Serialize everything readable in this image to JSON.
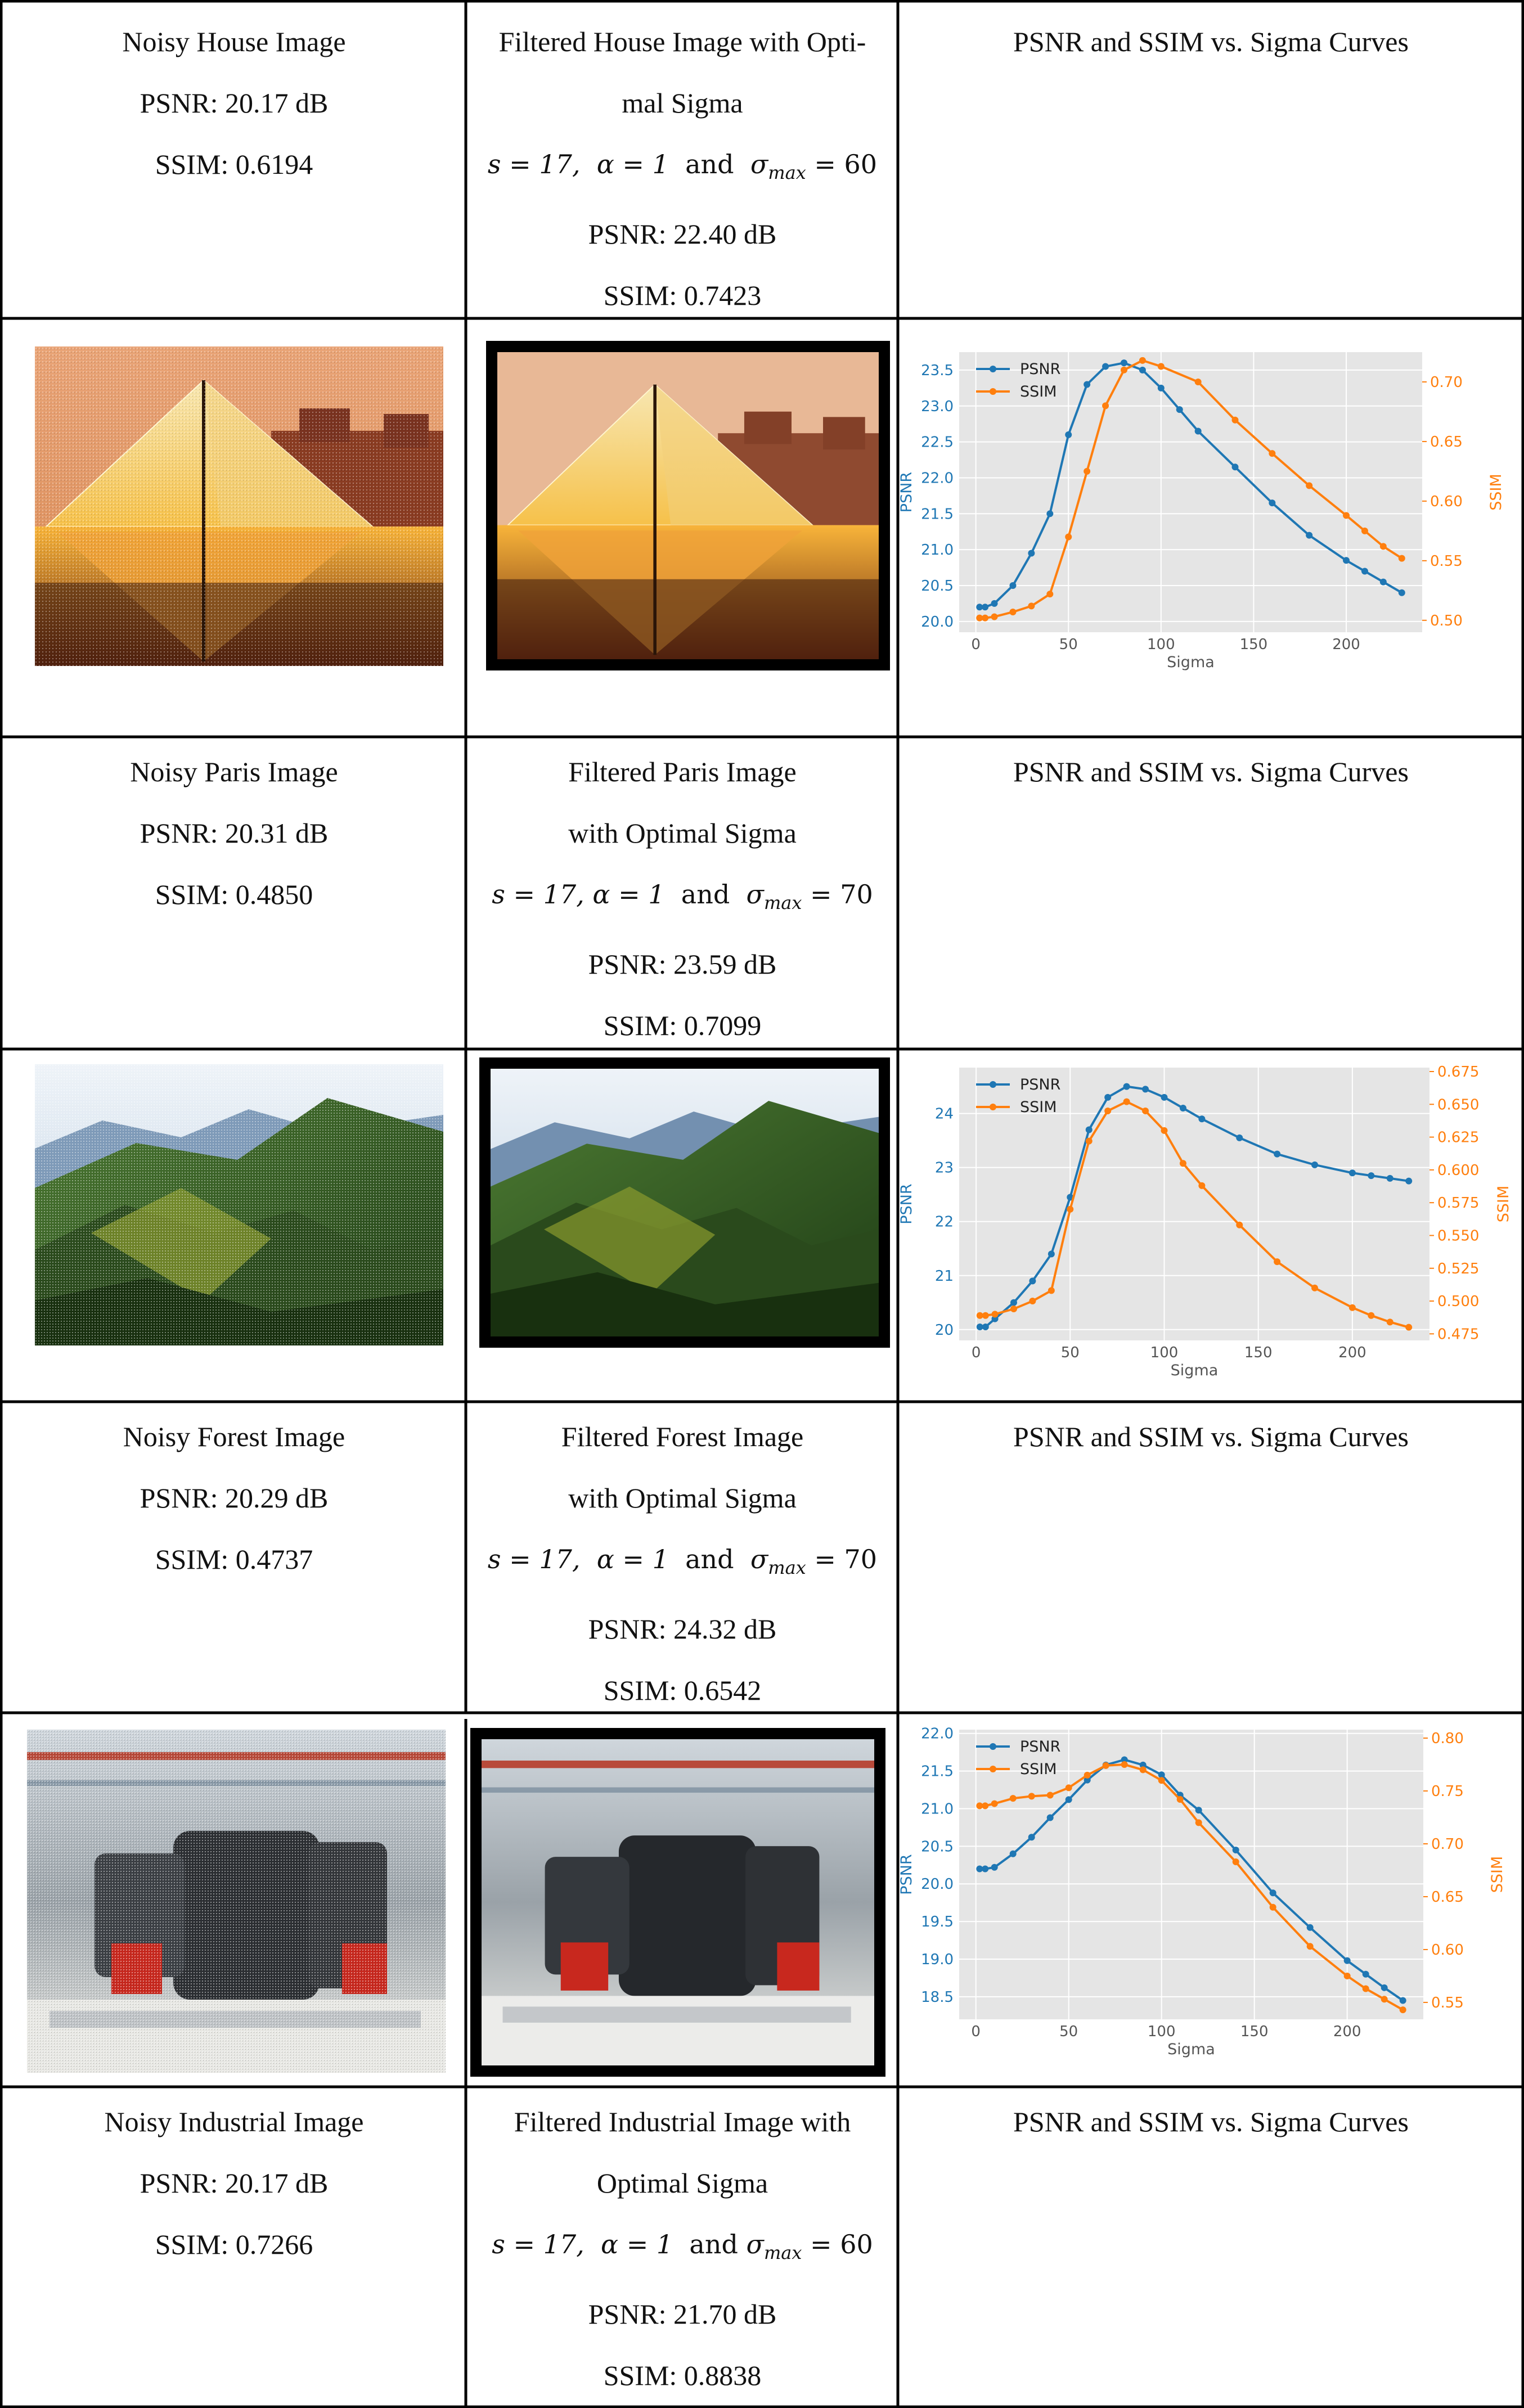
{
  "rows": [
    {
      "noisy": {
        "title": "Noisy House Image",
        "psnr": "PSNR: 20.17 dB",
        "ssim": "SSIM: 0.6194"
      },
      "filtered": {
        "title_lines": [
          "Filtered House Image with Opti-",
          "mal Sigma"
        ],
        "params": {
          "s": "s = 17,",
          "alpha": "α = 1",
          "and": "and",
          "sigma": "σ",
          "sub": "max",
          "val": "= 60"
        },
        "psnr": "PSNR: 22.40 dB",
        "ssim": "SSIM: 0.7423"
      },
      "curves_title": "PSNR and SSIM vs. Sigma Curves"
    },
    {
      "noisy": {
        "title": "Noisy Paris Image",
        "psnr": "PSNR: 20.31 dB",
        "ssim": "SSIM: 0.4850"
      },
      "filtered": {
        "title_lines": [
          "Filtered Paris Image",
          "with Optimal Sigma"
        ],
        "params": {
          "s": "s = 17,",
          "alpha": "α = 1",
          "and": "and",
          "sigma": "σ",
          "sub": "max",
          "val": "= 70"
        },
        "psnr": "PSNR: 23.59 dB",
        "ssim": "SSIM: 0.7099"
      },
      "curves_title": "PSNR and SSIM vs. Sigma Curves"
    },
    {
      "noisy": {
        "title": "Noisy Forest Image",
        "psnr": "PSNR: 20.29 dB",
        "ssim": "SSIM: 0.4737"
      },
      "filtered": {
        "title_lines": [
          "Filtered Forest Image",
          "with Optimal Sigma"
        ],
        "params": {
          "s": "s = 17,",
          "alpha": "α = 1",
          "and": "and",
          "sigma": "σ",
          "sub": "max",
          "val": "= 70"
        },
        "psnr": "PSNR: 24.32 dB",
        "ssim": "SSIM: 0.6542"
      },
      "curves_title": "PSNR and SSIM vs. Sigma Curves"
    },
    {
      "noisy": {
        "title": "Noisy Industrial Image",
        "psnr": "PSNR: 20.17 dB",
        "ssim": "SSIM: 0.7266"
      },
      "filtered": {
        "title_lines": [
          "Filtered Industrial Image with",
          "Optimal Sigma"
        ],
        "params": {
          "s": "s = 17,",
          "alpha": "α = 1",
          "and": "and",
          "sigma": "σ",
          "sub": "max",
          "val": "= 60"
        },
        "psnr": "PSNR: 21.70 dB",
        "ssim": "SSIM: 0.8838"
      },
      "curves_title": "PSNR and SSIM vs. Sigma Curves"
    }
  ],
  "chart_data": [
    {
      "type": "line",
      "xlabel": "Sigma",
      "ylabel_left": "PSNR",
      "ylabel_right": "SSIM",
      "xlim": [
        -9,
        241
      ],
      "xticks": [
        0,
        50,
        100,
        150,
        200
      ],
      "ylim_left": [
        19.85,
        23.75
      ],
      "yticks_left": [
        "20.0",
        "20.5",
        "21.0",
        "21.5",
        "22.0",
        "22.5",
        "23.0",
        "23.5"
      ],
      "ylim_right": [
        0.49,
        0.725
      ],
      "yticks_right": [
        "0.50",
        "0.55",
        "0.60",
        "0.65",
        "0.70"
      ],
      "legend": "top-left",
      "grid": true,
      "series": [
        {
          "name": "PSNR",
          "color": "#1f77b4",
          "axis": "left",
          "x": [
            2,
            5,
            10,
            20,
            30,
            40,
            50,
            60,
            70,
            80,
            90,
            100,
            110,
            120,
            140,
            160,
            180,
            200,
            210,
            220,
            230
          ],
          "values": [
            20.2,
            20.2,
            20.25,
            20.5,
            20.95,
            21.5,
            22.6,
            23.3,
            23.55,
            23.6,
            23.5,
            23.25,
            22.95,
            22.65,
            22.15,
            21.65,
            21.2,
            20.85,
            20.7,
            20.55,
            20.4
          ]
        },
        {
          "name": "SSIM",
          "color": "#ff7f0e",
          "axis": "right",
          "x": [
            2,
            5,
            10,
            20,
            30,
            40,
            50,
            60,
            70,
            80,
            90,
            100,
            120,
            140,
            160,
            180,
            200,
            210,
            220,
            230
          ],
          "values": [
            0.502,
            0.502,
            0.503,
            0.507,
            0.512,
            0.522,
            0.57,
            0.625,
            0.68,
            0.71,
            0.718,
            0.713,
            0.7,
            0.668,
            0.64,
            0.613,
            0.588,
            0.575,
            0.562,
            0.552
          ]
        }
      ]
    },
    {
      "type": "line",
      "xlabel": "Sigma",
      "ylabel_left": "PSNR",
      "ylabel_right": "SSIM",
      "xlim": [
        -9,
        241
      ],
      "xticks": [
        0,
        50,
        100,
        150,
        200
      ],
      "ylim_left": [
        19.8,
        24.85
      ],
      "yticks_left": [
        "20",
        "21",
        "22",
        "23",
        "24"
      ],
      "ylim_right": [
        0.47,
        0.678
      ],
      "yticks_right": [
        "0.475",
        "0.500",
        "0.525",
        "0.550",
        "0.575",
        "0.600",
        "0.625",
        "0.650",
        "0.675"
      ],
      "legend": "top-left",
      "grid": true,
      "series": [
        {
          "name": "PSNR",
          "color": "#1f77b4",
          "axis": "left",
          "x": [
            2,
            5,
            10,
            20,
            30,
            40,
            50,
            60,
            70,
            80,
            90,
            100,
            110,
            120,
            140,
            160,
            180,
            200,
            210,
            220,
            230
          ],
          "values": [
            20.05,
            20.05,
            20.2,
            20.5,
            20.9,
            21.4,
            22.45,
            23.7,
            24.3,
            24.5,
            24.45,
            24.3,
            24.1,
            23.9,
            23.55,
            23.25,
            23.05,
            22.9,
            22.85,
            22.8,
            22.75
          ]
        },
        {
          "name": "SSIM",
          "color": "#ff7f0e",
          "axis": "right",
          "x": [
            2,
            5,
            10,
            20,
            30,
            40,
            50,
            60,
            70,
            80,
            90,
            100,
            110,
            120,
            140,
            160,
            180,
            200,
            210,
            220,
            230
          ],
          "values": [
            0.489,
            0.489,
            0.49,
            0.494,
            0.5,
            0.508,
            0.57,
            0.622,
            0.645,
            0.652,
            0.645,
            0.63,
            0.605,
            0.588,
            0.558,
            0.53,
            0.51,
            0.495,
            0.489,
            0.484,
            0.48
          ]
        }
      ]
    },
    {
      "type": "line",
      "xlabel": "Sigma",
      "ylabel_left": "PSNR",
      "ylabel_right": "SSIM",
      "xlim": [
        -9,
        241
      ],
      "xticks": [
        0,
        50,
        100,
        150,
        200
      ],
      "ylim_left": [
        18.2,
        22.05
      ],
      "yticks_left": [
        "18.5",
        "19.0",
        "19.5",
        "20.0",
        "20.5",
        "21.0",
        "21.5",
        "22.0"
      ],
      "ylim_right": [
        0.534,
        0.808
      ],
      "yticks_right": [
        "0.55",
        "0.60",
        "0.65",
        "0.70",
        "0.75",
        "0.80"
      ],
      "legend": "top-left",
      "grid": true,
      "series": [
        {
          "name": "PSNR",
          "color": "#1f77b4",
          "axis": "left",
          "x": [
            2,
            5,
            10,
            20,
            30,
            40,
            50,
            60,
            70,
            80,
            90,
            100,
            110,
            120,
            140,
            160,
            180,
            200,
            210,
            220,
            230
          ],
          "values": [
            20.2,
            20.2,
            20.22,
            20.4,
            20.62,
            20.88,
            21.12,
            21.38,
            21.58,
            21.65,
            21.58,
            21.45,
            21.18,
            20.98,
            20.45,
            19.88,
            19.42,
            18.98,
            18.8,
            18.62,
            18.45
          ]
        },
        {
          "name": "SSIM",
          "color": "#ff7f0e",
          "axis": "right",
          "x": [
            2,
            5,
            10,
            20,
            30,
            40,
            50,
            60,
            70,
            80,
            90,
            100,
            110,
            120,
            140,
            160,
            180,
            200,
            210,
            220,
            230
          ],
          "values": [
            0.736,
            0.736,
            0.738,
            0.743,
            0.745,
            0.746,
            0.753,
            0.765,
            0.774,
            0.775,
            0.77,
            0.76,
            0.742,
            0.72,
            0.683,
            0.64,
            0.603,
            0.575,
            0.563,
            0.553,
            0.543
          ]
        }
      ]
    }
  ]
}
